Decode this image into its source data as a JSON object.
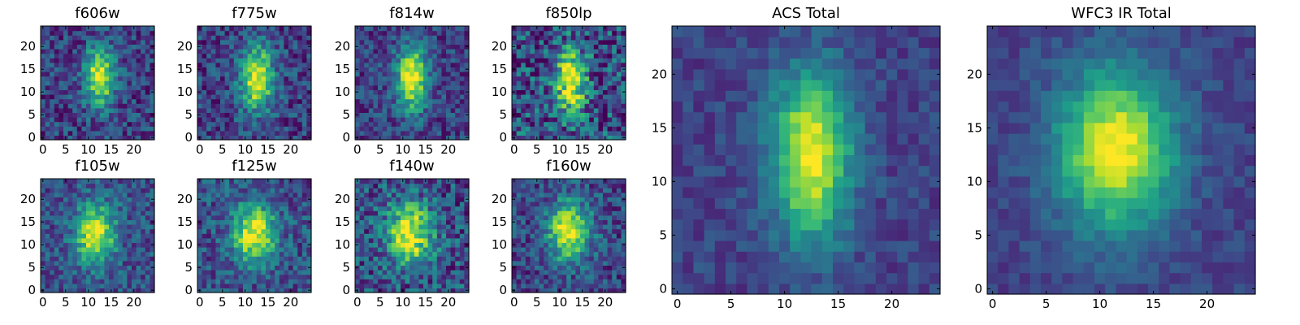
{
  "figure": {
    "colormap": "viridis",
    "colormap_stops": [
      "#440154",
      "#482878",
      "#3e4989",
      "#31688e",
      "#26828e",
      "#1f9e89",
      "#35b779",
      "#6ece58",
      "#b5de2b",
      "#fde725"
    ]
  },
  "chart_data": [
    {
      "type": "heatmap",
      "title": "f606w",
      "grid": [
        25,
        25
      ],
      "xlim": [
        0,
        24
      ],
      "ylim": [
        0,
        24
      ],
      "xticks": [
        "0",
        "5",
        "10",
        "15",
        "20"
      ],
      "yticks": [
        "0",
        "5",
        "10",
        "15",
        "20"
      ],
      "peak": {
        "x": 12.5,
        "y": 13.5
      },
      "spread": {
        "x": 2.2,
        "y": 4.5
      },
      "background": 0.2,
      "noise": 0.2
    },
    {
      "type": "heatmap",
      "title": "f775w",
      "grid": [
        25,
        25
      ],
      "xlim": [
        0,
        24
      ],
      "ylim": [
        0,
        24
      ],
      "xticks": [
        "0",
        "5",
        "10",
        "15",
        "20"
      ],
      "yticks": [
        "0",
        "5",
        "10",
        "15",
        "20"
      ],
      "peak": {
        "x": 12.5,
        "y": 13
      },
      "spread": {
        "x": 2.5,
        "y": 5
      },
      "background": 0.2,
      "noise": 0.2
    },
    {
      "type": "heatmap",
      "title": "f814w",
      "grid": [
        25,
        25
      ],
      "xlim": [
        0,
        24
      ],
      "ylim": [
        0,
        24
      ],
      "xticks": [
        "0",
        "5",
        "10",
        "15",
        "20"
      ],
      "yticks": [
        "0",
        "5",
        "10",
        "15",
        "20"
      ],
      "peak": {
        "x": 12,
        "y": 13
      },
      "spread": {
        "x": 2.4,
        "y": 5
      },
      "background": 0.2,
      "noise": 0.18
    },
    {
      "type": "heatmap",
      "title": "f850lp",
      "grid": [
        25,
        25
      ],
      "xlim": [
        0,
        24
      ],
      "ylim": [
        0,
        24
      ],
      "xticks": [
        "0",
        "5",
        "10",
        "15",
        "20"
      ],
      "yticks": [
        "0",
        "5",
        "10",
        "15",
        "20"
      ],
      "peak": {
        "x": 12.5,
        "y": 12
      },
      "spread": {
        "x": 2.3,
        "y": 5
      },
      "background": 0.25,
      "noise": 0.3
    },
    {
      "type": "heatmap",
      "title": "f105w",
      "grid": [
        25,
        25
      ],
      "xlim": [
        0,
        24
      ],
      "ylim": [
        0,
        24
      ],
      "xticks": [
        "0",
        "5",
        "10",
        "15",
        "20"
      ],
      "yticks": [
        "0",
        "5",
        "10",
        "15",
        "20"
      ],
      "peak": {
        "x": 11.5,
        "y": 12.5
      },
      "spread": {
        "x": 3,
        "y": 4.5
      },
      "background": 0.25,
      "noise": 0.18
    },
    {
      "type": "heatmap",
      "title": "f125w",
      "grid": [
        25,
        25
      ],
      "xlim": [
        0,
        24
      ],
      "ylim": [
        0,
        24
      ],
      "xticks": [
        "0",
        "5",
        "10",
        "15",
        "20"
      ],
      "yticks": [
        "0",
        "5",
        "10",
        "15",
        "20"
      ],
      "peak": {
        "x": 12,
        "y": 12.5
      },
      "spread": {
        "x": 3.2,
        "y": 4.5
      },
      "background": 0.25,
      "noise": 0.2
    },
    {
      "type": "heatmap",
      "title": "f140w",
      "grid": [
        25,
        25
      ],
      "xlim": [
        0,
        24
      ],
      "ylim": [
        0,
        24
      ],
      "xticks": [
        "0",
        "5",
        "10",
        "15",
        "20"
      ],
      "yticks": [
        "0",
        "5",
        "10",
        "15",
        "20"
      ],
      "peak": {
        "x": 11.5,
        "y": 12.5
      },
      "spread": {
        "x": 3.5,
        "y": 4.5
      },
      "background": 0.25,
      "noise": 0.25
    },
    {
      "type": "heatmap",
      "title": "f160w",
      "grid": [
        25,
        25
      ],
      "xlim": [
        0,
        24
      ],
      "ylim": [
        0,
        24
      ],
      "xticks": [
        "0",
        "5",
        "10",
        "15",
        "20"
      ],
      "yticks": [
        "0",
        "5",
        "10",
        "15",
        "20"
      ],
      "peak": {
        "x": 12,
        "y": 13
      },
      "spread": {
        "x": 3.2,
        "y": 4.5
      },
      "background": 0.22,
      "noise": 0.2
    },
    {
      "type": "heatmap",
      "title": "ACS Total",
      "grid": [
        25,
        25
      ],
      "xlim": [
        0,
        24
      ],
      "ylim": [
        0,
        24
      ],
      "xticks": [
        "0",
        "5",
        "10",
        "15",
        "20"
      ],
      "yticks": [
        "0",
        "5",
        "10",
        "15",
        "20"
      ],
      "peak": {
        "x": 12.5,
        "y": 12.5
      },
      "spread": {
        "x": 2.6,
        "y": 5.5
      },
      "background": 0.2,
      "noise": 0.1
    },
    {
      "type": "heatmap",
      "title": "WFC3 IR Total",
      "grid": [
        25,
        25
      ],
      "xlim": [
        0,
        24
      ],
      "ylim": [
        0,
        24
      ],
      "xticks": [
        "0",
        "5",
        "10",
        "15",
        "20"
      ],
      "yticks": [
        "0",
        "5",
        "10",
        "15",
        "20"
      ],
      "peak": {
        "x": 11.5,
        "y": 13
      },
      "spread": {
        "x": 3.8,
        "y": 5.2
      },
      "background": 0.2,
      "noise": 0.08
    }
  ]
}
